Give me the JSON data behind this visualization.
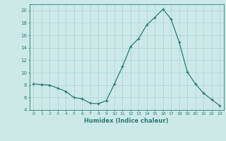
{
  "x": [
    0,
    1,
    2,
    3,
    4,
    5,
    6,
    7,
    8,
    9,
    10,
    11,
    12,
    13,
    14,
    15,
    16,
    17,
    18,
    19,
    20,
    21,
    22,
    23
  ],
  "y": [
    8.2,
    8.1,
    8.0,
    7.5,
    7.0,
    6.0,
    5.8,
    5.1,
    5.0,
    5.5,
    8.2,
    11.0,
    14.2,
    15.5,
    17.7,
    18.9,
    20.2,
    18.6,
    14.9,
    10.1,
    8.2,
    6.7,
    5.7,
    4.7
  ],
  "line_color": "#2e7b6e",
  "marker": "+",
  "marker_size": 3.5,
  "background_color": "#cce9e8",
  "grid_color": "#aad4d2",
  "xlabel": "Humidex (Indice chaleur)",
  "ylim": [
    4,
    21
  ],
  "xlim": [
    -0.5,
    23.5
  ],
  "yticks": [
    4,
    6,
    8,
    10,
    12,
    14,
    16,
    18,
    20
  ],
  "xticks": [
    0,
    1,
    2,
    3,
    4,
    5,
    6,
    7,
    8,
    9,
    10,
    11,
    12,
    13,
    14,
    15,
    16,
    17,
    18,
    19,
    20,
    21,
    22,
    23
  ],
  "tick_color": "#2e7b6e",
  "label_color": "#2e7b6e",
  "spine_color": "#2e7b6e"
}
